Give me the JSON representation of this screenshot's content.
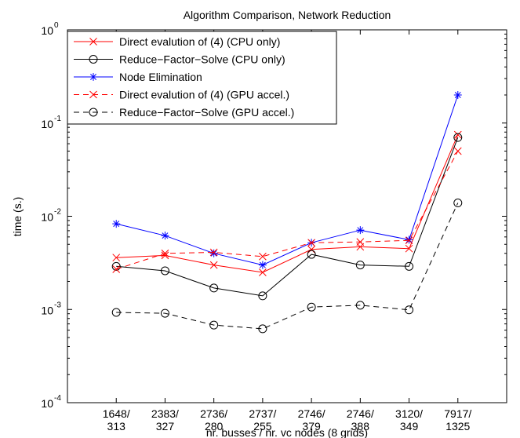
{
  "chart_data": {
    "type": "line",
    "title": "Algorithm Comparison, Network Reduction",
    "xlabel": "nr. busses / nr. vc nodes (8 grids)",
    "ylabel": "time (s.)",
    "yscale": "log",
    "ylim": [
      0.0001,
      1
    ],
    "yticks": [
      {
        "value": 0.0001,
        "base": "10",
        "exp": "-4"
      },
      {
        "value": 0.001,
        "base": "10",
        "exp": "-3"
      },
      {
        "value": 0.01,
        "base": "10",
        "exp": "-2"
      },
      {
        "value": 0.1,
        "base": "10",
        "exp": "-1"
      },
      {
        "value": 1,
        "base": "10",
        "exp": "0"
      }
    ],
    "categories": [
      {
        "line1": "1648/",
        "line2": "313"
      },
      {
        "line1": "2383/",
        "line2": "327"
      },
      {
        "line1": "2736/",
        "line2": "280"
      },
      {
        "line1": "2737/",
        "line2": "255"
      },
      {
        "line1": "2746/",
        "line2": "379"
      },
      {
        "line1": "2746/",
        "line2": "388"
      },
      {
        "line1": "3120/",
        "line2": "349"
      },
      {
        "line1": "7917/",
        "line2": "1325"
      }
    ],
    "grid": false,
    "legend_position": "top-left",
    "series": [
      {
        "name": "Direct evalution of (4) (CPU only)",
        "color": "#ff0000",
        "dash": "solid",
        "marker": "x",
        "values": [
          0.0036,
          0.0038,
          0.003,
          0.0025,
          0.0044,
          0.0047,
          0.0045,
          0.075
        ]
      },
      {
        "name": "Reduce−Factor−Solve (CPU only)",
        "color": "#000000",
        "dash": "solid",
        "marker": "circle",
        "values": [
          0.0029,
          0.0026,
          0.0017,
          0.0014,
          0.0039,
          0.003,
          0.0029,
          0.07
        ]
      },
      {
        "name": "Node Elimination",
        "color": "#0000ff",
        "dash": "solid",
        "marker": "star",
        "values": [
          0.0083,
          0.0062,
          0.004,
          0.003,
          0.0052,
          0.0071,
          0.0056,
          0.2
        ]
      },
      {
        "name": "Direct evalution of (4) (GPU accel.)",
        "color": "#ff0000",
        "dash": "dashed",
        "marker": "x",
        "values": [
          0.0027,
          0.004,
          0.0041,
          0.0037,
          0.0052,
          0.0053,
          0.0055,
          0.05
        ]
      },
      {
        "name": "Reduce−Factor−Solve (GPU accel.)",
        "color": "#000000",
        "dash": "dashed",
        "marker": "circle",
        "values": [
          0.00093,
          0.00091,
          0.00068,
          0.00062,
          0.00106,
          0.00111,
          0.00099,
          0.0139
        ]
      }
    ]
  }
}
